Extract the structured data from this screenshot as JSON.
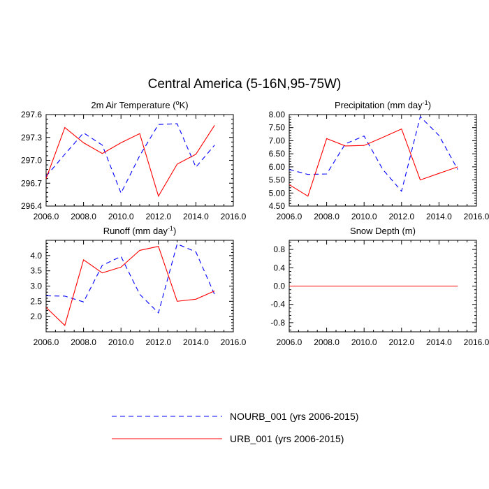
{
  "figure": {
    "title": "Central America (5-16N,95-75W)"
  },
  "legend": [
    {
      "label": "NOURB_001 (yrs 2006-2015)",
      "color": "#0000ff",
      "style": "dashed"
    },
    {
      "label": "URB_001 (yrs 2006-2015)",
      "color": "#ff0000",
      "style": "solid"
    }
  ],
  "chart_data": [
    {
      "type": "line",
      "title": "2m Air Temperature (°K)",
      "title_parts": [
        "2m Air Temperature (",
        "o",
        "K)"
      ],
      "x": [
        2006,
        2007,
        2008,
        2009,
        2010,
        2011,
        2012,
        2013,
        2014,
        2015
      ],
      "xlim": [
        2006,
        2016
      ],
      "xticks": [
        2006,
        2008,
        2010,
        2012,
        2014,
        2016
      ],
      "xtick_labels": [
        "2006.0",
        "2008.0",
        "2010.0",
        "2012.0",
        "2014.0",
        "2016.0"
      ],
      "ylim": [
        296.4,
        297.6
      ],
      "yticks": [
        296.4,
        296.7,
        297.0,
        297.3,
        297.6
      ],
      "ytick_labels": [
        "296.4",
        "296.7",
        "297.0",
        "297.3",
        "297.6"
      ],
      "series": [
        {
          "name": "NOURB_001 (yrs 2006-2015)",
          "values": [
            296.79,
            297.08,
            297.36,
            297.2,
            296.57,
            297.06,
            297.47,
            297.48,
            296.91,
            297.2
          ]
        },
        {
          "name": "URB_001 (yrs 2006-2015)",
          "values": [
            296.76,
            297.43,
            297.23,
            297.09,
            297.23,
            297.35,
            296.53,
            296.95,
            297.08,
            297.46
          ]
        }
      ]
    },
    {
      "type": "line",
      "title": "Precipitation (mm day⁻¹)",
      "title_parts": [
        "Precipitation (mm day",
        "-1",
        ")"
      ],
      "x": [
        2006,
        2007,
        2008,
        2009,
        2010,
        2011,
        2012,
        2013,
        2014,
        2015
      ],
      "xlim": [
        2006,
        2016
      ],
      "xticks": [
        2006,
        2008,
        2010,
        2012,
        2014,
        2016
      ],
      "xtick_labels": [
        "2006.0",
        "2008.0",
        "2010.0",
        "2012.0",
        "2014.0",
        "2016.0"
      ],
      "ylim": [
        4.5,
        8.0
      ],
      "yticks": [
        4.5,
        5.0,
        5.5,
        6.0,
        6.5,
        7.0,
        7.5,
        8.0
      ],
      "ytick_labels": [
        "4.50",
        "5.00",
        "5.50",
        "6.00",
        "6.50",
        "7.00",
        "7.50",
        "8.00"
      ],
      "series": [
        {
          "name": "NOURB_001 (yrs 2006-2015)",
          "values": [
            5.9,
            5.71,
            5.73,
            6.88,
            7.18,
            5.9,
            5.07,
            7.92,
            7.2,
            5.9
          ]
        },
        {
          "name": "URB_001 (yrs 2006-2015)",
          "values": [
            5.32,
            4.88,
            7.08,
            6.8,
            6.82,
            7.13,
            7.45,
            5.5,
            5.75,
            6.0
          ]
        }
      ]
    },
    {
      "type": "line",
      "title": "Runoff (mm day⁻¹)",
      "title_parts": [
        "Runoff (mm day",
        "-1",
        ")"
      ],
      "x": [
        2006,
        2007,
        2008,
        2009,
        2010,
        2011,
        2012,
        2013,
        2014,
        2015
      ],
      "xlim": [
        2006,
        2016
      ],
      "xticks": [
        2006,
        2008,
        2010,
        2012,
        2014,
        2016
      ],
      "xtick_labels": [
        "2006.0",
        "2008.0",
        "2010.0",
        "2012.0",
        "2014.0",
        "2016.0"
      ],
      "ylim": [
        1.5,
        4.5
      ],
      "yticks": [
        2.0,
        2.5,
        3.0,
        3.5,
        4.0
      ],
      "ytick_labels": [
        "2.0",
        "2.5",
        "3.0",
        "3.5",
        "4.0"
      ],
      "series": [
        {
          "name": "NOURB_001 (yrs 2006-2015)",
          "values": [
            2.68,
            2.67,
            2.48,
            3.68,
            3.97,
            2.73,
            2.12,
            4.38,
            4.12,
            2.72
          ]
        },
        {
          "name": "URB_001 (yrs 2006-2015)",
          "values": [
            2.3,
            1.71,
            3.86,
            3.43,
            3.62,
            4.17,
            4.3,
            2.5,
            2.57,
            2.84
          ]
        }
      ]
    },
    {
      "type": "line",
      "title": "Snow Depth (m)",
      "title_parts": [
        "Snow Depth (m)",
        "",
        ""
      ],
      "x": [
        2006,
        2007,
        2008,
        2009,
        2010,
        2011,
        2012,
        2013,
        2014,
        2015
      ],
      "xlim": [
        2006,
        2016
      ],
      "xticks": [
        2006,
        2008,
        2010,
        2012,
        2014,
        2016
      ],
      "xtick_labels": [
        "2006.0",
        "2008.0",
        "2010.0",
        "2012.0",
        "2014.0",
        "2016.0"
      ],
      "ylim": [
        -1.0,
        1.0
      ],
      "yticks": [
        -0.8,
        -0.4,
        0.0,
        0.4,
        0.8
      ],
      "ytick_labels": [
        "-0.8",
        "-0.4",
        "0.0",
        "0.4",
        "0.8"
      ],
      "series": [
        {
          "name": "NOURB_001 (yrs 2006-2015)",
          "values": [
            0,
            0,
            0,
            0,
            0,
            0,
            0,
            0,
            0,
            0
          ]
        },
        {
          "name": "URB_001 (yrs 2006-2015)",
          "values": [
            0,
            0,
            0,
            0,
            0,
            0,
            0,
            0,
            0,
            0
          ]
        }
      ]
    }
  ]
}
